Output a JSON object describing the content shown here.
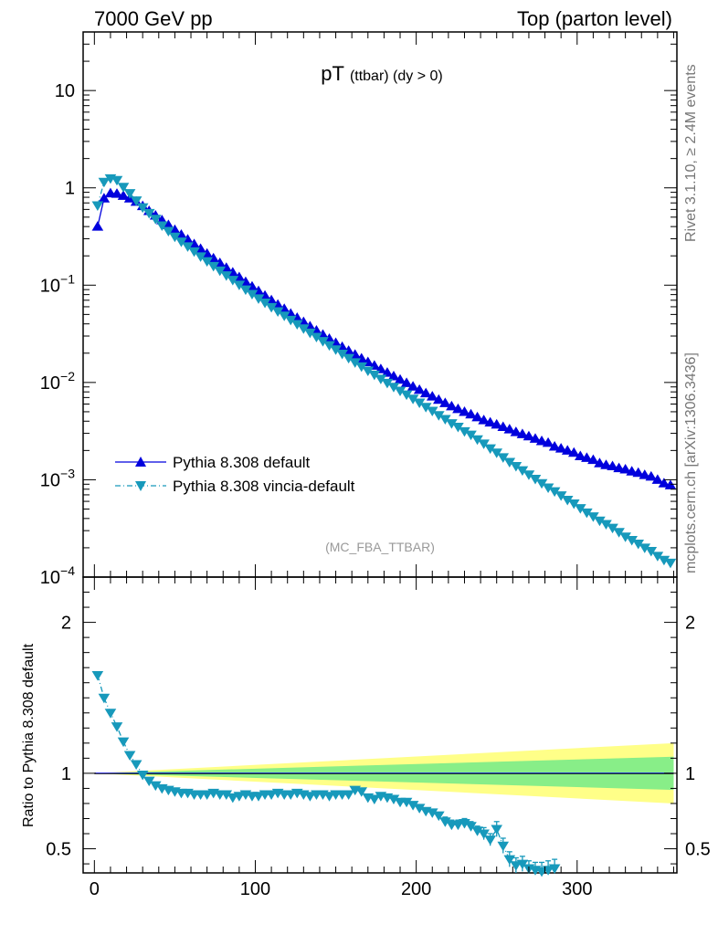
{
  "header": {
    "left": "7000 GeV pp",
    "right": "Top (parton level)"
  },
  "side": {
    "rivet": "Rivet 3.1.10, ≥ 2.4M events",
    "mcplots": "mcplots.cern.ch [arXiv:1306.3436]"
  },
  "chart_data": [
    {
      "type": "line",
      "title_main": "pT",
      "title_sub": "(ttbar) (dy > 0)",
      "analysis_label": "(MC_FBA_TTBAR)",
      "y_scale": "log",
      "ylim": [
        0.0001,
        40
      ],
      "xlim": [
        -7,
        362
      ],
      "y_tick_labels": [
        {
          "value": 10,
          "base": "10",
          "exp": ""
        },
        {
          "value": 1,
          "base": "1",
          "exp": ""
        },
        {
          "value": 0.1,
          "base": "10",
          "exp": "−1"
        },
        {
          "value": 0.01,
          "base": "10",
          "exp": "−2"
        },
        {
          "value": 0.001,
          "base": "10",
          "exp": "−3"
        },
        {
          "value": 0.0001,
          "base": "10",
          "exp": "−4"
        }
      ],
      "legend_position": "bottom-left",
      "series": [
        {
          "name": "Pythia 8.308 default",
          "color": "#0000dd",
          "marker": "triangle-up",
          "line": "solid",
          "x": [
            2,
            6,
            10,
            14,
            18,
            22,
            26,
            30,
            34,
            38,
            42,
            46,
            50,
            54,
            58,
            62,
            66,
            70,
            74,
            78,
            82,
            86,
            90,
            94,
            98,
            102,
            106,
            110,
            114,
            118,
            122,
            126,
            130,
            134,
            138,
            142,
            146,
            150,
            154,
            158,
            162,
            166,
            170,
            174,
            178,
            182,
            186,
            190,
            194,
            198,
            202,
            206,
            210,
            214,
            218,
            222,
            226,
            230,
            234,
            238,
            242,
            246,
            250,
            254,
            258,
            262,
            266,
            270,
            274,
            278,
            282,
            286,
            290,
            294,
            298,
            302,
            306,
            310,
            314,
            318,
            322,
            326,
            330,
            334,
            338,
            342,
            346,
            350,
            354,
            358
          ],
          "y": [
            0.4,
            0.78,
            0.88,
            0.87,
            0.83,
            0.78,
            0.72,
            0.65,
            0.58,
            0.52,
            0.465,
            0.415,
            0.37,
            0.33,
            0.295,
            0.264,
            0.236,
            0.211,
            0.189,
            0.169,
            0.151,
            0.135,
            0.121,
            0.108,
            0.097,
            0.087,
            0.078,
            0.07,
            0.063,
            0.057,
            0.051,
            0.0462,
            0.0418,
            0.0378,
            0.0342,
            0.031,
            0.0281,
            0.0255,
            0.0232,
            0.0212,
            0.0193,
            0.0177,
            0.0162,
            0.0149,
            0.0137,
            0.0126,
            0.0116,
            0.0107,
            0.0099,
            0.0091,
            0.0084,
            0.00775,
            0.0072,
            0.00665,
            0.00615,
            0.0057,
            0.00535,
            0.005,
            0.0047,
            0.0044,
            0.0041,
            0.00388,
            0.0037,
            0.0035,
            0.0033,
            0.0031,
            0.00295,
            0.0028,
            0.00265,
            0.0025,
            0.0024,
            0.0022,
            0.0021,
            0.002,
            0.0019,
            0.00175,
            0.00168,
            0.0016,
            0.00148,
            0.00142,
            0.00138,
            0.00132,
            0.00128,
            0.00122,
            0.00118,
            0.00112,
            0.00108,
            0.001,
            0.00092,
            0.00088
          ]
        },
        {
          "name": "Pythia 8.308 vincia-default",
          "color": "#1799bb",
          "marker": "triangle-down",
          "line": "dashed",
          "x": [
            2,
            6,
            10,
            14,
            18,
            22,
            26,
            30,
            34,
            38,
            42,
            46,
            50,
            54,
            58,
            62,
            66,
            70,
            74,
            78,
            82,
            86,
            90,
            94,
            98,
            102,
            106,
            110,
            114,
            118,
            122,
            126,
            130,
            134,
            138,
            142,
            146,
            150,
            154,
            158,
            162,
            166,
            170,
            174,
            178,
            182,
            186,
            190,
            194,
            198,
            202,
            206,
            210,
            214,
            218,
            222,
            226,
            230,
            234,
            238,
            242,
            246,
            250,
            254,
            258,
            262,
            266,
            270,
            274,
            278,
            282,
            286,
            290,
            294,
            298,
            302,
            306,
            310,
            314,
            318,
            322,
            326,
            330,
            334,
            338,
            342,
            346,
            350,
            354,
            358
          ],
          "y": [
            0.66,
            1.15,
            1.25,
            1.2,
            1.02,
            0.88,
            0.74,
            0.63,
            0.55,
            0.48,
            0.41,
            0.36,
            0.315,
            0.28,
            0.25,
            0.222,
            0.197,
            0.176,
            0.157,
            0.141,
            0.126,
            0.113,
            0.101,
            0.09,
            0.081,
            0.073,
            0.066,
            0.0595,
            0.0538,
            0.0486,
            0.0439,
            0.0397,
            0.0359,
            0.0325,
            0.0294,
            0.0266,
            0.0241,
            0.0218,
            0.0197,
            0.0178,
            0.0161,
            0.0146,
            0.0132,
            0.012,
            0.0109,
            0.0099,
            0.009,
            0.0082,
            0.0075,
            0.0068,
            0.0062,
            0.0056,
            0.0051,
            0.0046,
            0.0042,
            0.0038,
            0.0035,
            0.00315,
            0.0029,
            0.0026,
            0.00235,
            0.0021,
            0.0019,
            0.0017,
            0.00152,
            0.00138,
            0.00125,
            0.00113,
            0.00102,
            0.00092,
            0.00083,
            0.00076,
            0.00069,
            0.00062,
            0.00057,
            0.00051,
            0.00046,
            0.00042,
            0.00038,
            0.00035,
            0.00032,
            0.00029,
            0.00026,
            0.00024,
            0.00022,
            0.0002,
            0.000185,
            0.000165,
            0.00015,
            0.00014
          ]
        }
      ]
    },
    {
      "type": "line",
      "ylabel": "Ratio to Pythia 8.308 default",
      "xlabel": "",
      "xlim": [
        -7,
        362
      ],
      "ylim": [
        0.34,
        2.3
      ],
      "y_ticks": [
        0.5,
        1,
        2
      ],
      "y_tick_labels": [
        "0.5",
        "1",
        "2"
      ],
      "x_ticks": [
        0,
        100,
        200,
        300
      ],
      "x_tick_labels": [
        "0",
        "100",
        "200",
        "300"
      ],
      "reference_line": 1,
      "bands": [
        {
          "color": "#ffff88",
          "x": [
            0,
            360
          ],
          "upper": [
            1.0,
            1.2
          ],
          "lower": [
            1.0,
            0.8
          ]
        },
        {
          "color": "#88ee88",
          "x": [
            0,
            360
          ],
          "upper": [
            1.0,
            1.11
          ],
          "lower": [
            1.0,
            0.89
          ]
        }
      ],
      "series": [
        {
          "name": "Pythia 8.308 vincia-default",
          "color": "#1799bb",
          "marker": "triangle-down",
          "line": "dashed",
          "x": [
            2,
            6,
            10,
            14,
            18,
            22,
            26,
            30,
            34,
            38,
            42,
            46,
            50,
            54,
            58,
            62,
            66,
            70,
            74,
            78,
            82,
            86,
            90,
            94,
            98,
            102,
            106,
            110,
            114,
            118,
            122,
            126,
            130,
            134,
            138,
            142,
            146,
            150,
            154,
            158,
            162,
            166,
            170,
            174,
            178,
            182,
            186,
            190,
            194,
            198,
            202,
            206,
            210,
            214,
            218,
            222,
            226,
            230,
            234,
            238,
            242,
            246,
            250,
            254,
            258,
            262,
            266,
            270,
            274,
            278,
            282,
            286
          ],
          "y": [
            1.65,
            1.5,
            1.4,
            1.31,
            1.21,
            1.12,
            1.06,
            0.99,
            0.95,
            0.92,
            0.9,
            0.89,
            0.88,
            0.87,
            0.87,
            0.86,
            0.86,
            0.86,
            0.87,
            0.86,
            0.86,
            0.84,
            0.85,
            0.86,
            0.85,
            0.85,
            0.86,
            0.86,
            0.87,
            0.86,
            0.86,
            0.87,
            0.86,
            0.85,
            0.86,
            0.86,
            0.85,
            0.86,
            0.86,
            0.86,
            0.89,
            0.88,
            0.84,
            0.83,
            0.85,
            0.84,
            0.83,
            0.81,
            0.81,
            0.79,
            0.77,
            0.75,
            0.74,
            0.72,
            0.68,
            0.66,
            0.66,
            0.67,
            0.65,
            0.62,
            0.6,
            0.56,
            0.63,
            0.52,
            0.43,
            0.39,
            0.4,
            0.37,
            0.36,
            0.35,
            0.36,
            0.37
          ],
          "err": [
            0.01,
            0.01,
            0.01,
            0.01,
            0.01,
            0.01,
            0.01,
            0.01,
            0.01,
            0.01,
            0.01,
            0.01,
            0.01,
            0.01,
            0.01,
            0.01,
            0.01,
            0.01,
            0.01,
            0.01,
            0.01,
            0.01,
            0.01,
            0.01,
            0.01,
            0.01,
            0.01,
            0.01,
            0.01,
            0.01,
            0.01,
            0.01,
            0.01,
            0.01,
            0.01,
            0.01,
            0.01,
            0.01,
            0.01,
            0.01,
            0.01,
            0.01,
            0.01,
            0.01,
            0.01,
            0.01,
            0.02,
            0.02,
            0.02,
            0.02,
            0.02,
            0.02,
            0.02,
            0.02,
            0.03,
            0.03,
            0.03,
            0.03,
            0.03,
            0.03,
            0.04,
            0.04,
            0.05,
            0.05,
            0.05,
            0.05,
            0.05,
            0.05,
            0.05,
            0.06,
            0.06,
            0.06
          ]
        }
      ]
    }
  ]
}
